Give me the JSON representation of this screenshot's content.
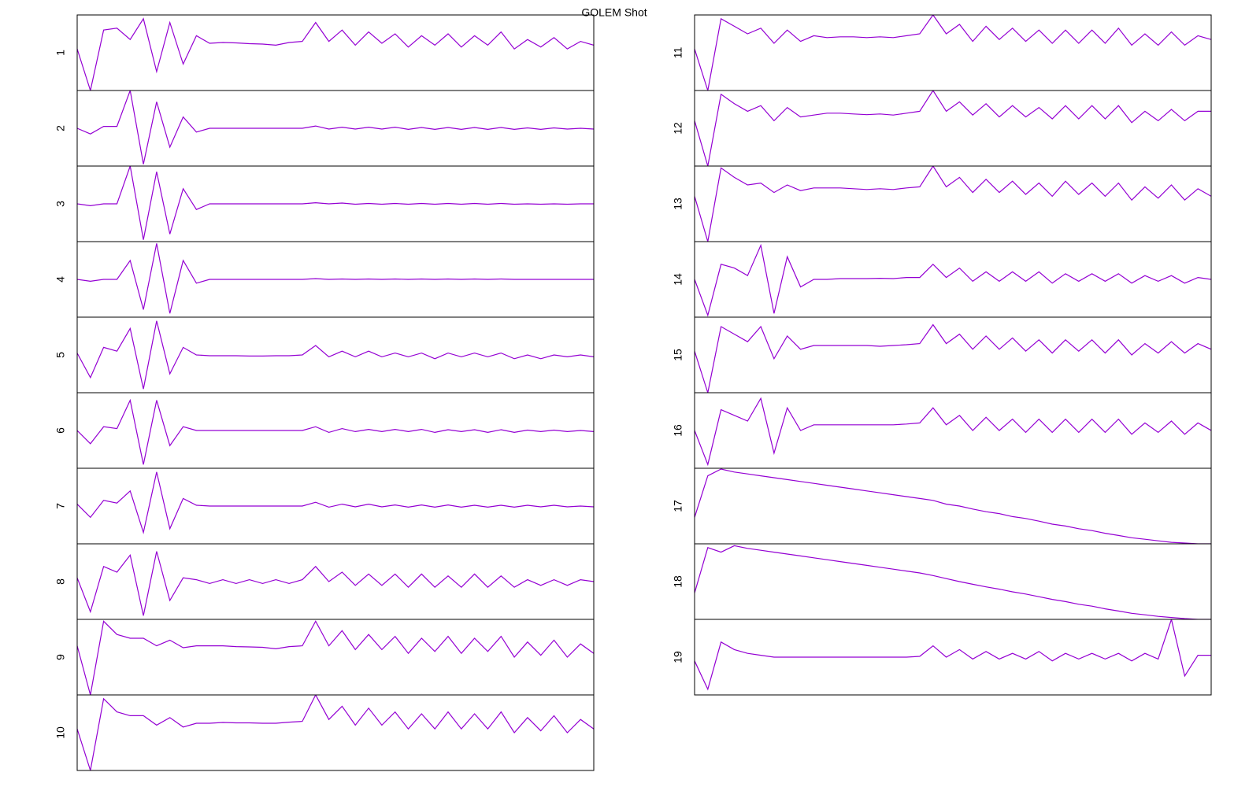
{
  "title": "GOLEM Shot",
  "chart_data": [
    {
      "type": "line",
      "ylabel": "1",
      "color": "#9400d3",
      "ylim": [
        -1,
        1
      ],
      "values": [
        0.1,
        -1,
        0.6,
        0.65,
        0.35,
        0.9,
        -0.5,
        0.8,
        -0.3,
        0.45,
        0.25,
        0.27,
        0.26,
        0.24,
        0.23,
        0.2,
        0.27,
        0.3,
        0.8,
        0.3,
        0.6,
        0.2,
        0.55,
        0.25,
        0.5,
        0.15,
        0.45,
        0.2,
        0.5,
        0.15,
        0.45,
        0.2,
        0.55,
        0.1,
        0.35,
        0.15,
        0.4,
        0.1,
        0.3,
        0.2
      ]
    },
    {
      "type": "line",
      "ylabel": "2",
      "color": "#9400d3",
      "ylim": [
        -1,
        1
      ],
      "values": [
        0,
        -0.15,
        0.05,
        0.05,
        1,
        -0.95,
        0.7,
        -0.5,
        0.3,
        -0.1,
        0,
        0,
        0,
        0,
        0,
        0,
        0,
        0,
        0.06,
        -0.02,
        0.03,
        -0.02,
        0.03,
        -0.02,
        0.03,
        -0.03,
        0.02,
        -0.03,
        0.02,
        -0.03,
        0.02,
        -0.03,
        0.02,
        -0.03,
        0.01,
        -0.03,
        0.01,
        -0.02,
        0,
        -0.02
      ]
    },
    {
      "type": "line",
      "ylabel": "3",
      "color": "#9400d3",
      "ylim": [
        -1,
        1
      ],
      "values": [
        0,
        -0.05,
        0,
        0,
        1,
        -0.95,
        0.85,
        -0.8,
        0.4,
        -0.15,
        0,
        0,
        0,
        0,
        0,
        0,
        0,
        0,
        0.03,
        0,
        0.02,
        -0.01,
        0.01,
        -0.01,
        0.01,
        -0.01,
        0.01,
        -0.01,
        0.01,
        -0.01,
        0.01,
        -0.01,
        0.01,
        -0.01,
        0,
        -0.01,
        0,
        -0.01,
        0,
        0
      ]
    },
    {
      "type": "line",
      "ylabel": "4",
      "color": "#9400d3",
      "ylim": [
        -1,
        1
      ],
      "values": [
        0,
        -0.05,
        0,
        0,
        0.5,
        -0.8,
        0.95,
        -0.9,
        0.5,
        -0.1,
        0,
        0,
        0,
        0,
        0,
        0,
        0,
        0,
        0.02,
        0,
        0.01,
        0,
        0.01,
        0,
        0.01,
        0,
        0.01,
        0,
        0.01,
        0,
        0.01,
        0,
        0.01,
        0,
        0,
        0,
        0,
        0,
        0,
        0
      ]
    },
    {
      "type": "line",
      "ylabel": "5",
      "color": "#9400d3",
      "ylim": [
        -1,
        1
      ],
      "values": [
        0.05,
        -0.6,
        0.2,
        0.1,
        0.7,
        -0.9,
        0.9,
        -0.5,
        0.2,
        0,
        -0.02,
        -0.02,
        -0.02,
        -0.03,
        -0.03,
        -0.02,
        -0.02,
        0,
        0.25,
        -0.05,
        0.1,
        -0.05,
        0.1,
        -0.05,
        0.05,
        -0.05,
        0.05,
        -0.1,
        0.05,
        -0.05,
        0.05,
        -0.05,
        0.05,
        -0.1,
        0,
        -0.1,
        0,
        -0.05,
        0,
        -0.05
      ]
    },
    {
      "type": "line",
      "ylabel": "6",
      "color": "#9400d3",
      "ylim": [
        -1,
        1
      ],
      "values": [
        0,
        -0.35,
        0.1,
        0.05,
        0.8,
        -0.9,
        0.8,
        -0.4,
        0.1,
        0,
        0,
        0,
        0,
        0,
        0,
        0,
        0,
        0,
        0.1,
        -0.05,
        0.05,
        -0.03,
        0.03,
        -0.03,
        0.03,
        -0.03,
        0.03,
        -0.05,
        0.02,
        -0.03,
        0.02,
        -0.05,
        0.02,
        -0.05,
        0.01,
        -0.03,
        0.01,
        -0.03,
        0,
        -0.03
      ]
    },
    {
      "type": "line",
      "ylabel": "7",
      "color": "#9400d3",
      "ylim": [
        -1,
        1
      ],
      "values": [
        0.05,
        -0.3,
        0.15,
        0.08,
        0.4,
        -0.7,
        0.9,
        -0.6,
        0.2,
        0.02,
        0,
        0,
        0,
        0,
        0,
        0,
        0,
        0,
        0.1,
        -0.03,
        0.05,
        -0.02,
        0.05,
        -0.02,
        0.03,
        -0.03,
        0.03,
        -0.03,
        0.03,
        -0.03,
        0.02,
        -0.03,
        0.02,
        -0.03,
        0.02,
        -0.02,
        0.02,
        -0.02,
        0,
        -0.02
      ]
    },
    {
      "type": "line",
      "ylabel": "8",
      "color": "#9400d3",
      "ylim": [
        -1,
        1
      ],
      "values": [
        0.1,
        -0.8,
        0.4,
        0.25,
        0.7,
        -0.9,
        0.8,
        -0.5,
        0.1,
        0.05,
        -0.05,
        0.05,
        -0.05,
        0.05,
        -0.05,
        0.05,
        -0.05,
        0.05,
        0.4,
        0,
        0.25,
        -0.1,
        0.2,
        -0.1,
        0.2,
        -0.15,
        0.2,
        -0.15,
        0.15,
        -0.15,
        0.2,
        -0.15,
        0.15,
        -0.15,
        0.05,
        -0.1,
        0.05,
        -0.1,
        0.05,
        0
      ]
    },
    {
      "type": "line",
      "ylabel": "9",
      "color": "#9400d3",
      "ylim": [
        -1,
        1
      ],
      "values": [
        0.3,
        -1,
        0.95,
        0.6,
        0.5,
        0.5,
        0.3,
        0.45,
        0.25,
        0.3,
        0.3,
        0.3,
        0.28,
        0.27,
        0.26,
        0.22,
        0.28,
        0.3,
        0.95,
        0.3,
        0.7,
        0.2,
        0.6,
        0.2,
        0.55,
        0.1,
        0.5,
        0.15,
        0.55,
        0.1,
        0.5,
        0.15,
        0.55,
        0,
        0.4,
        0.05,
        0.45,
        0,
        0.35,
        0.1
      ]
    },
    {
      "type": "line",
      "ylabel": "10",
      "color": "#9400d3",
      "ylim": [
        -1,
        1
      ],
      "values": [
        0.1,
        -1,
        0.9,
        0.55,
        0.45,
        0.45,
        0.2,
        0.4,
        0.15,
        0.25,
        0.25,
        0.27,
        0.26,
        0.26,
        0.25,
        0.25,
        0.28,
        0.3,
        1,
        0.35,
        0.7,
        0.2,
        0.65,
        0.2,
        0.55,
        0.1,
        0.5,
        0.1,
        0.55,
        0.1,
        0.5,
        0.1,
        0.55,
        0,
        0.4,
        0.05,
        0.45,
        0,
        0.35,
        0.1
      ]
    },
    {
      "type": "line",
      "ylabel": "11",
      "color": "#9400d3",
      "ylim": [
        -1,
        1
      ],
      "values": [
        0.1,
        -1,
        0.9,
        0.7,
        0.5,
        0.65,
        0.25,
        0.6,
        0.3,
        0.45,
        0.4,
        0.42,
        0.42,
        0.4,
        0.42,
        0.4,
        0.45,
        0.5,
        1,
        0.5,
        0.75,
        0.3,
        0.7,
        0.35,
        0.65,
        0.3,
        0.6,
        0.25,
        0.6,
        0.25,
        0.6,
        0.25,
        0.65,
        0.2,
        0.5,
        0.2,
        0.55,
        0.2,
        0.45,
        0.35
      ]
    },
    {
      "type": "line",
      "ylabel": "12",
      "color": "#9400d3",
      "ylim": [
        -1,
        1
      ],
      "values": [
        0.2,
        -1,
        0.9,
        0.65,
        0.45,
        0.6,
        0.2,
        0.55,
        0.3,
        0.35,
        0.4,
        0.4,
        0.38,
        0.36,
        0.38,
        0.35,
        0.4,
        0.45,
        1,
        0.45,
        0.7,
        0.35,
        0.65,
        0.3,
        0.6,
        0.3,
        0.55,
        0.25,
        0.6,
        0.25,
        0.6,
        0.25,
        0.6,
        0.15,
        0.45,
        0.2,
        0.5,
        0.2,
        0.45,
        0.45
      ]
    },
    {
      "type": "line",
      "ylabel": "13",
      "color": "#9400d3",
      "ylim": [
        -1,
        1
      ],
      "values": [
        0.2,
        -1,
        0.95,
        0.7,
        0.5,
        0.55,
        0.3,
        0.5,
        0.35,
        0.42,
        0.42,
        0.42,
        0.4,
        0.38,
        0.4,
        0.38,
        0.42,
        0.45,
        1,
        0.45,
        0.7,
        0.3,
        0.65,
        0.3,
        0.6,
        0.25,
        0.55,
        0.2,
        0.6,
        0.25,
        0.55,
        0.2,
        0.55,
        0.1,
        0.45,
        0.15,
        0.5,
        0.1,
        0.4,
        0.2
      ]
    },
    {
      "type": "line",
      "ylabel": "14",
      "color": "#9400d3",
      "ylim": [
        -1,
        1
      ],
      "values": [
        0,
        -0.95,
        0.4,
        0.3,
        0.1,
        0.9,
        -0.9,
        0.6,
        -0.2,
        0,
        0,
        0.02,
        0.02,
        0.02,
        0.03,
        0.02,
        0.05,
        0.05,
        0.4,
        0.05,
        0.3,
        -0.05,
        0.2,
        -0.05,
        0.2,
        -0.05,
        0.2,
        -0.1,
        0.15,
        -0.05,
        0.15,
        -0.05,
        0.15,
        -0.1,
        0.1,
        -0.05,
        0.1,
        -0.1,
        0.05,
        0
      ]
    },
    {
      "type": "line",
      "ylabel": "15",
      "color": "#9400d3",
      "ylim": [
        -1,
        1
      ],
      "values": [
        0.1,
        -1,
        0.75,
        0.55,
        0.35,
        0.75,
        -0.1,
        0.5,
        0.15,
        0.25,
        0.25,
        0.25,
        0.25,
        0.25,
        0.23,
        0.25,
        0.27,
        0.3,
        0.8,
        0.3,
        0.55,
        0.15,
        0.5,
        0.15,
        0.45,
        0.1,
        0.4,
        0.05,
        0.4,
        0.1,
        0.4,
        0.05,
        0.4,
        0,
        0.3,
        0.05,
        0.35,
        0.05,
        0.3,
        0.15
      ]
    },
    {
      "type": "line",
      "ylabel": "16",
      "color": "#9400d3",
      "ylim": [
        -1,
        1
      ],
      "values": [
        0,
        -0.9,
        0.55,
        0.4,
        0.25,
        0.85,
        -0.6,
        0.6,
        0,
        0.15,
        0.15,
        0.15,
        0.15,
        0.15,
        0.15,
        0.15,
        0.17,
        0.2,
        0.6,
        0.15,
        0.4,
        0,
        0.35,
        0,
        0.3,
        -0.05,
        0.3,
        -0.05,
        0.3,
        -0.05,
        0.3,
        -0.05,
        0.3,
        -0.1,
        0.2,
        -0.05,
        0.25,
        -0.1,
        0.2,
        0
      ]
    },
    {
      "type": "line",
      "ylabel": "17",
      "color": "#9400d3",
      "ylim": [
        -1,
        1
      ],
      "values": [
        -0.3,
        0.8,
        0.98,
        0.9,
        0.85,
        0.8,
        0.75,
        0.7,
        0.65,
        0.6,
        0.55,
        0.5,
        0.45,
        0.4,
        0.35,
        0.3,
        0.25,
        0.2,
        0.15,
        0.05,
        0,
        -0.08,
        -0.15,
        -0.2,
        -0.28,
        -0.33,
        -0.4,
        -0.48,
        -0.53,
        -0.6,
        -0.65,
        -0.72,
        -0.78,
        -0.84,
        -0.88,
        -0.92,
        -0.96,
        -0.98,
        -1,
        -1
      ]
    },
    {
      "type": "line",
      "ylabel": "18",
      "color": "#9400d3",
      "ylim": [
        -1,
        1
      ],
      "values": [
        -0.3,
        0.9,
        0.78,
        0.95,
        0.88,
        0.83,
        0.78,
        0.73,
        0.68,
        0.63,
        0.58,
        0.53,
        0.48,
        0.43,
        0.38,
        0.33,
        0.28,
        0.23,
        0.16,
        0.08,
        0,
        -0.07,
        -0.14,
        -0.2,
        -0.27,
        -0.33,
        -0.4,
        -0.47,
        -0.53,
        -0.6,
        -0.65,
        -0.72,
        -0.78,
        -0.84,
        -0.88,
        -0.92,
        -0.95,
        -0.98,
        -1,
        -1
      ]
    },
    {
      "type": "line",
      "ylabel": "19",
      "color": "#9400d3",
      "ylim": [
        -1,
        1
      ],
      "values": [
        -0.1,
        -0.85,
        0.4,
        0.2,
        0.1,
        0.05,
        0,
        0,
        0,
        0,
        0,
        0,
        0,
        0,
        0,
        0,
        0,
        0.02,
        0.3,
        0,
        0.2,
        -0.05,
        0.15,
        -0.05,
        0.1,
        -0.05,
        0.15,
        -0.1,
        0.1,
        -0.05,
        0.1,
        -0.05,
        0.1,
        -0.1,
        0.1,
        -0.05,
        1,
        -0.5,
        0.05,
        0.05
      ]
    }
  ]
}
